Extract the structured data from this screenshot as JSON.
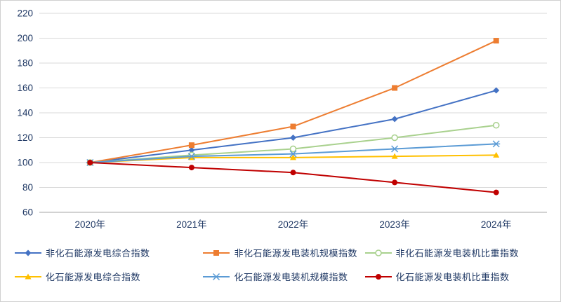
{
  "chart_data": {
    "type": "line",
    "title": "",
    "xlabel": "",
    "ylabel": "",
    "categories": [
      "2020年",
      "2021年",
      "2022年",
      "2023年",
      "2024年"
    ],
    "y_ticks": [
      60,
      80,
      100,
      120,
      140,
      160,
      180,
      200,
      220
    ],
    "ylim": [
      60,
      220
    ],
    "grid": true,
    "legend_position": "bottom",
    "axis_color": "#a6a6a6",
    "grid_color": "#d9d9d9",
    "label_color": "#1f3864",
    "series": [
      {
        "name": "非化石能源发电综合指数",
        "color": "#4472c4",
        "marker": "diamond",
        "values": [
          100,
          110,
          120,
          135,
          158
        ]
      },
      {
        "name": "非化石能源发电装机规模指数",
        "color": "#ed7d31",
        "marker": "square",
        "values": [
          100,
          114,
          129,
          160,
          198
        ]
      },
      {
        "name": "非化石能源发电装机比重指数",
        "color": "#a9d18e",
        "marker": "circle-open",
        "values": [
          100,
          106,
          111,
          120,
          130
        ]
      },
      {
        "name": "化石能源发电综合指数",
        "color": "#ffc000",
        "marker": "triangle",
        "values": [
          100,
          104,
          104,
          105,
          106
        ]
      },
      {
        "name": "化石能源发电装机规模指数",
        "color": "#5b9bd5",
        "marker": "star",
        "values": [
          100,
          105,
          107,
          111,
          115
        ]
      },
      {
        "name": "化石能源发电装机比重指数",
        "color": "#c00000",
        "marker": "circle",
        "values": [
          100,
          96,
          92,
          84,
          76
        ]
      }
    ]
  }
}
